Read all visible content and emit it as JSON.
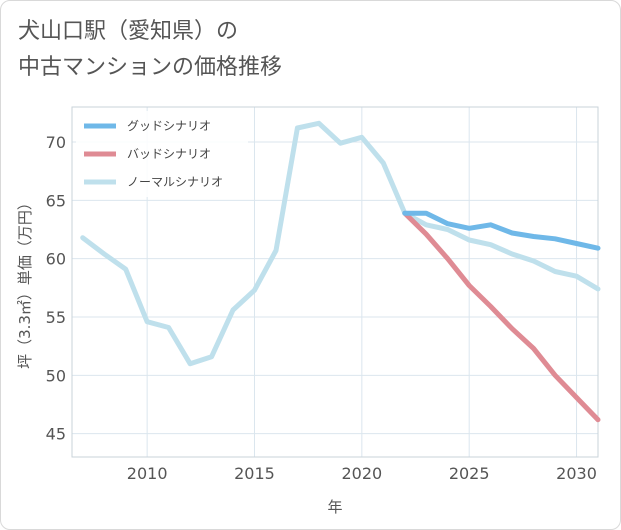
{
  "page": {
    "title": "犬山口駅（愛知県）の\n中古マンションの価格推移"
  },
  "chart_data": {
    "type": "line",
    "title": "犬山口駅（愛知県）の中古マンションの価格推移",
    "xlabel": "年",
    "ylabel": "坪（3.3㎡）単価（万円）",
    "xlim": [
      2006.5,
      2031
    ],
    "ylim": [
      43,
      73
    ],
    "xticks": [
      2010,
      2015,
      2020,
      2025,
      2030
    ],
    "yticks": [
      45,
      50,
      55,
      60,
      65,
      70
    ],
    "grid": true,
    "legend_position": "top-left",
    "series": [
      {
        "name": "グッドシナリオ",
        "color": "#6fb8e8",
        "x": [
          2022,
          2023,
          2024,
          2025,
          2026,
          2027,
          2028,
          2029,
          2030,
          2031
        ],
        "y": [
          63.9,
          63.9,
          63.0,
          62.6,
          62.9,
          62.2,
          61.9,
          61.7,
          61.3,
          60.9
        ]
      },
      {
        "name": "バッドシナリオ",
        "color": "#df8b94",
        "x": [
          2022,
          2023,
          2024,
          2025,
          2026,
          2027,
          2028,
          2029,
          2030,
          2031
        ],
        "y": [
          63.9,
          62.1,
          60.0,
          57.7,
          55.9,
          54.0,
          52.3,
          50.0,
          48.1,
          46.2
        ]
      },
      {
        "name": "ノーマルシナリオ",
        "color": "#bfe0ec",
        "x": [
          2007,
          2008,
          2009,
          2010,
          2011,
          2012,
          2013,
          2014,
          2015,
          2016,
          2017,
          2018,
          2019,
          2020,
          2021,
          2022,
          2023,
          2024,
          2025,
          2026,
          2027,
          2028,
          2029,
          2030,
          2031
        ],
        "y": [
          61.8,
          60.4,
          59.1,
          54.6,
          54.1,
          51.0,
          51.6,
          55.6,
          57.3,
          60.7,
          71.2,
          71.6,
          69.9,
          70.4,
          68.2,
          63.9,
          62.9,
          62.5,
          61.6,
          61.2,
          60.4,
          59.8,
          58.9,
          58.5,
          57.4
        ]
      }
    ]
  }
}
